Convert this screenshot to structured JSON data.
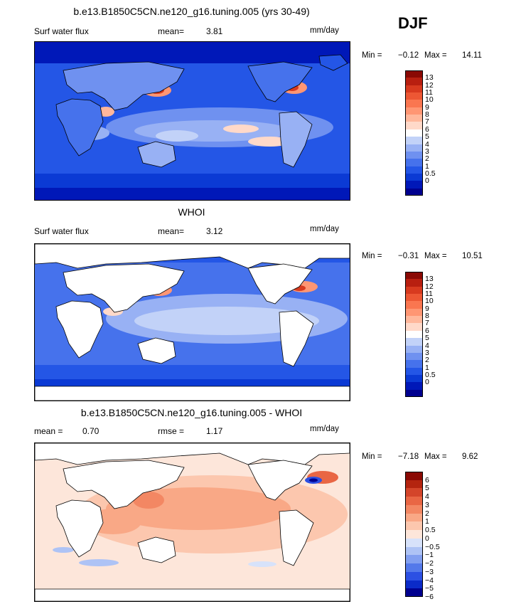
{
  "season_label": "DJF",
  "palettes": {
    "flux": [
      "#00008f",
      "#0018b8",
      "#0b3ad4",
      "#2456e6",
      "#4672ec",
      "#6f91f0",
      "#98b1f4",
      "#c2d2f8",
      "#ffffff",
      "#ffd9c9",
      "#ffb79b",
      "#ff9673",
      "#fa7650",
      "#ed5734",
      "#d83a1f",
      "#b81f10",
      "#8a0904"
    ],
    "diff": [
      "#00008f",
      "#0b2bc8",
      "#2c50e3",
      "#5479ea",
      "#829ff0",
      "#aec3f5",
      "#d7e2fa",
      "#fde6da",
      "#fcc7ae",
      "#f9a886",
      "#f38763",
      "#e96644",
      "#d4452a",
      "#b4240f",
      "#8a0904"
    ]
  },
  "chart_data": [
    {
      "type": "heatmap",
      "map": "global",
      "title": "b.e13.B1850C5CN.ne120_g16.tuning.005 (yrs 30-49)",
      "variable": "Surf water flux",
      "stat_left": "mean=",
      "stat_left_value": "3.81",
      "units": "mm/day",
      "min_label": "Min =",
      "min": "−0.12",
      "max_label": "Max =",
      "max": "14.11",
      "levels": [
        "13",
        "12",
        "11",
        "10",
        "9",
        "8",
        "7",
        "6",
        "5",
        "4",
        "3",
        "2",
        "1",
        "0.5",
        "0"
      ],
      "land_filled": true
    },
    {
      "type": "heatmap",
      "map": "global",
      "title": "WHOI",
      "variable": "Surf water flux",
      "stat_left": "mean=",
      "stat_left_value": "3.12",
      "units": "mm/day",
      "min_label": "Min =",
      "min": "−0.31",
      "max_label": "Max =",
      "max": "10.51",
      "levels": [
        "13",
        "12",
        "11",
        "10",
        "9",
        "8",
        "7",
        "6",
        "5",
        "4",
        "3",
        "2",
        "1",
        "0.5",
        "0"
      ],
      "land_filled": false
    },
    {
      "type": "heatmap",
      "map": "global",
      "title": "b.e13.B1850C5CN.ne120_g16.tuning.005 - WHOI",
      "stat_left": "mean =",
      "stat_left_value": "0.70",
      "stat_mid": "rmse =",
      "stat_mid_value": "1.17",
      "units": "mm/day",
      "min_label": "Min =",
      "min": "−7.18",
      "max_label": "Max =",
      "max": "9.62",
      "levels": [
        "6",
        "5",
        "4",
        "3",
        "2",
        "1",
        "0.5",
        "0",
        "−0.5",
        "−1",
        "−2",
        "−3",
        "−4",
        "−5",
        "−6"
      ],
      "land_filled": false
    }
  ]
}
